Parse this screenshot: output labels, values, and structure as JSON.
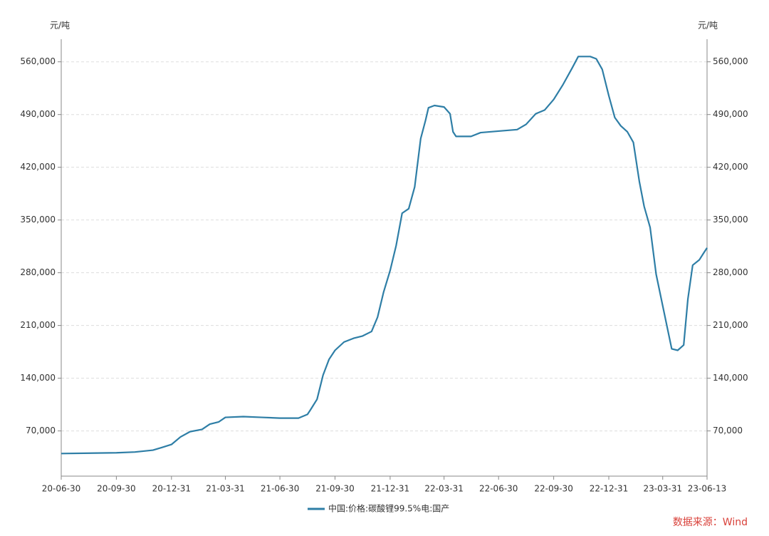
{
  "chart_data": {
    "type": "line",
    "y_unit": "元/吨",
    "y2_unit": "元/吨",
    "source": "数据来源：Wind",
    "x": [
      "20-06-30",
      "20-09-30",
      "20-10-31",
      "20-11-30",
      "20-12-15",
      "20-12-31",
      "21-01-15",
      "21-01-31",
      "21-02-20",
      "21-03-05",
      "21-03-20",
      "21-03-31",
      "21-04-30",
      "21-05-31",
      "21-06-30",
      "21-07-31",
      "21-08-15",
      "21-08-20",
      "21-08-31",
      "21-09-10",
      "21-09-20",
      "21-09-30",
      "21-10-15",
      "21-10-31",
      "21-11-15",
      "21-11-30",
      "21-12-10",
      "21-12-20",
      "21-12-31",
      "22-01-10",
      "22-01-20",
      "22-01-31",
      "22-02-10",
      "22-02-20",
      "22-02-28",
      "22-03-05",
      "22-03-15",
      "22-03-31",
      "22-04-10",
      "22-04-15",
      "22-04-20",
      "22-05-15",
      "22-05-31",
      "22-06-30",
      "22-07-31",
      "22-08-15",
      "22-08-31",
      "22-09-15",
      "22-09-30",
      "22-10-15",
      "22-10-31",
      "22-11-10",
      "22-11-30",
      "22-12-10",
      "22-12-20",
      "22-12-31",
      "23-01-10",
      "23-01-20",
      "23-01-31",
      "23-02-10",
      "23-02-20",
      "23-02-28",
      "23-03-10",
      "23-03-20",
      "23-03-31",
      "23-04-10",
      "23-04-15",
      "23-04-25",
      "23-05-05",
      "23-05-12",
      "23-05-20",
      "23-05-31",
      "23-06-08",
      "23-06-13"
    ],
    "series": [
      {
        "name": "中国:价格:碳酸锂99.5%电:国产",
        "color": "#2e7ea6",
        "values": [
          40000,
          41000,
          42000,
          44500,
          48000,
          52000,
          62000,
          69000,
          72000,
          79000,
          82000,
          88000,
          89000,
          88000,
          87000,
          87000,
          92000,
          98000,
          112000,
          144000,
          165000,
          177000,
          188000,
          193000,
          196000,
          202000,
          221000,
          254000,
          283000,
          316000,
          359000,
          365000,
          394000,
          458000,
          482000,
          499000,
          502000,
          500000,
          491000,
          467000,
          461000,
          461000,
          466000,
          468000,
          470000,
          477000,
          491000,
          496000,
          510000,
          529000,
          552000,
          567000,
          567000,
          564000,
          550000,
          515000,
          486000,
          475000,
          467000,
          453000,
          401000,
          368000,
          340000,
          278000,
          236000,
          198000,
          179000,
          177000,
          184000,
          245000,
          290000,
          297000,
          307000,
          313000
        ]
      }
    ],
    "xlim": [
      "20-06-30",
      "23-06-13"
    ],
    "xticks": [
      "20-06-30",
      "20-09-30",
      "20-12-31",
      "21-03-31",
      "21-06-30",
      "21-09-30",
      "21-12-31",
      "22-03-31",
      "22-06-30",
      "22-09-30",
      "22-12-31",
      "23-03-31",
      "23-06-13"
    ],
    "ylim": [
      10000,
      590000
    ],
    "yticks": [
      {
        "value": 70000,
        "label": "70,000"
      },
      {
        "value": 140000,
        "label": "140,000"
      },
      {
        "value": 210000,
        "label": "210,000"
      },
      {
        "value": 280000,
        "label": "280,000"
      },
      {
        "value": 350000,
        "label": "350,000"
      },
      {
        "value": 420000,
        "label": "420,000"
      },
      {
        "value": 490000,
        "label": "490,000"
      },
      {
        "value": 560000,
        "label": "560,000"
      }
    ],
    "y2lim": [
      10000,
      590000
    ],
    "y2ticks": [
      {
        "value": 70000,
        "label": "70,000"
      },
      {
        "value": 140000,
        "label": "140,000"
      },
      {
        "value": 210000,
        "label": "210,000"
      },
      {
        "value": 280000,
        "label": "280,000"
      },
      {
        "value": 350000,
        "label": "350,000"
      },
      {
        "value": 420000,
        "label": "420,000"
      },
      {
        "value": 490000,
        "label": "490,000"
      },
      {
        "value": 560000,
        "label": "560,000"
      }
    ],
    "grid": true
  }
}
